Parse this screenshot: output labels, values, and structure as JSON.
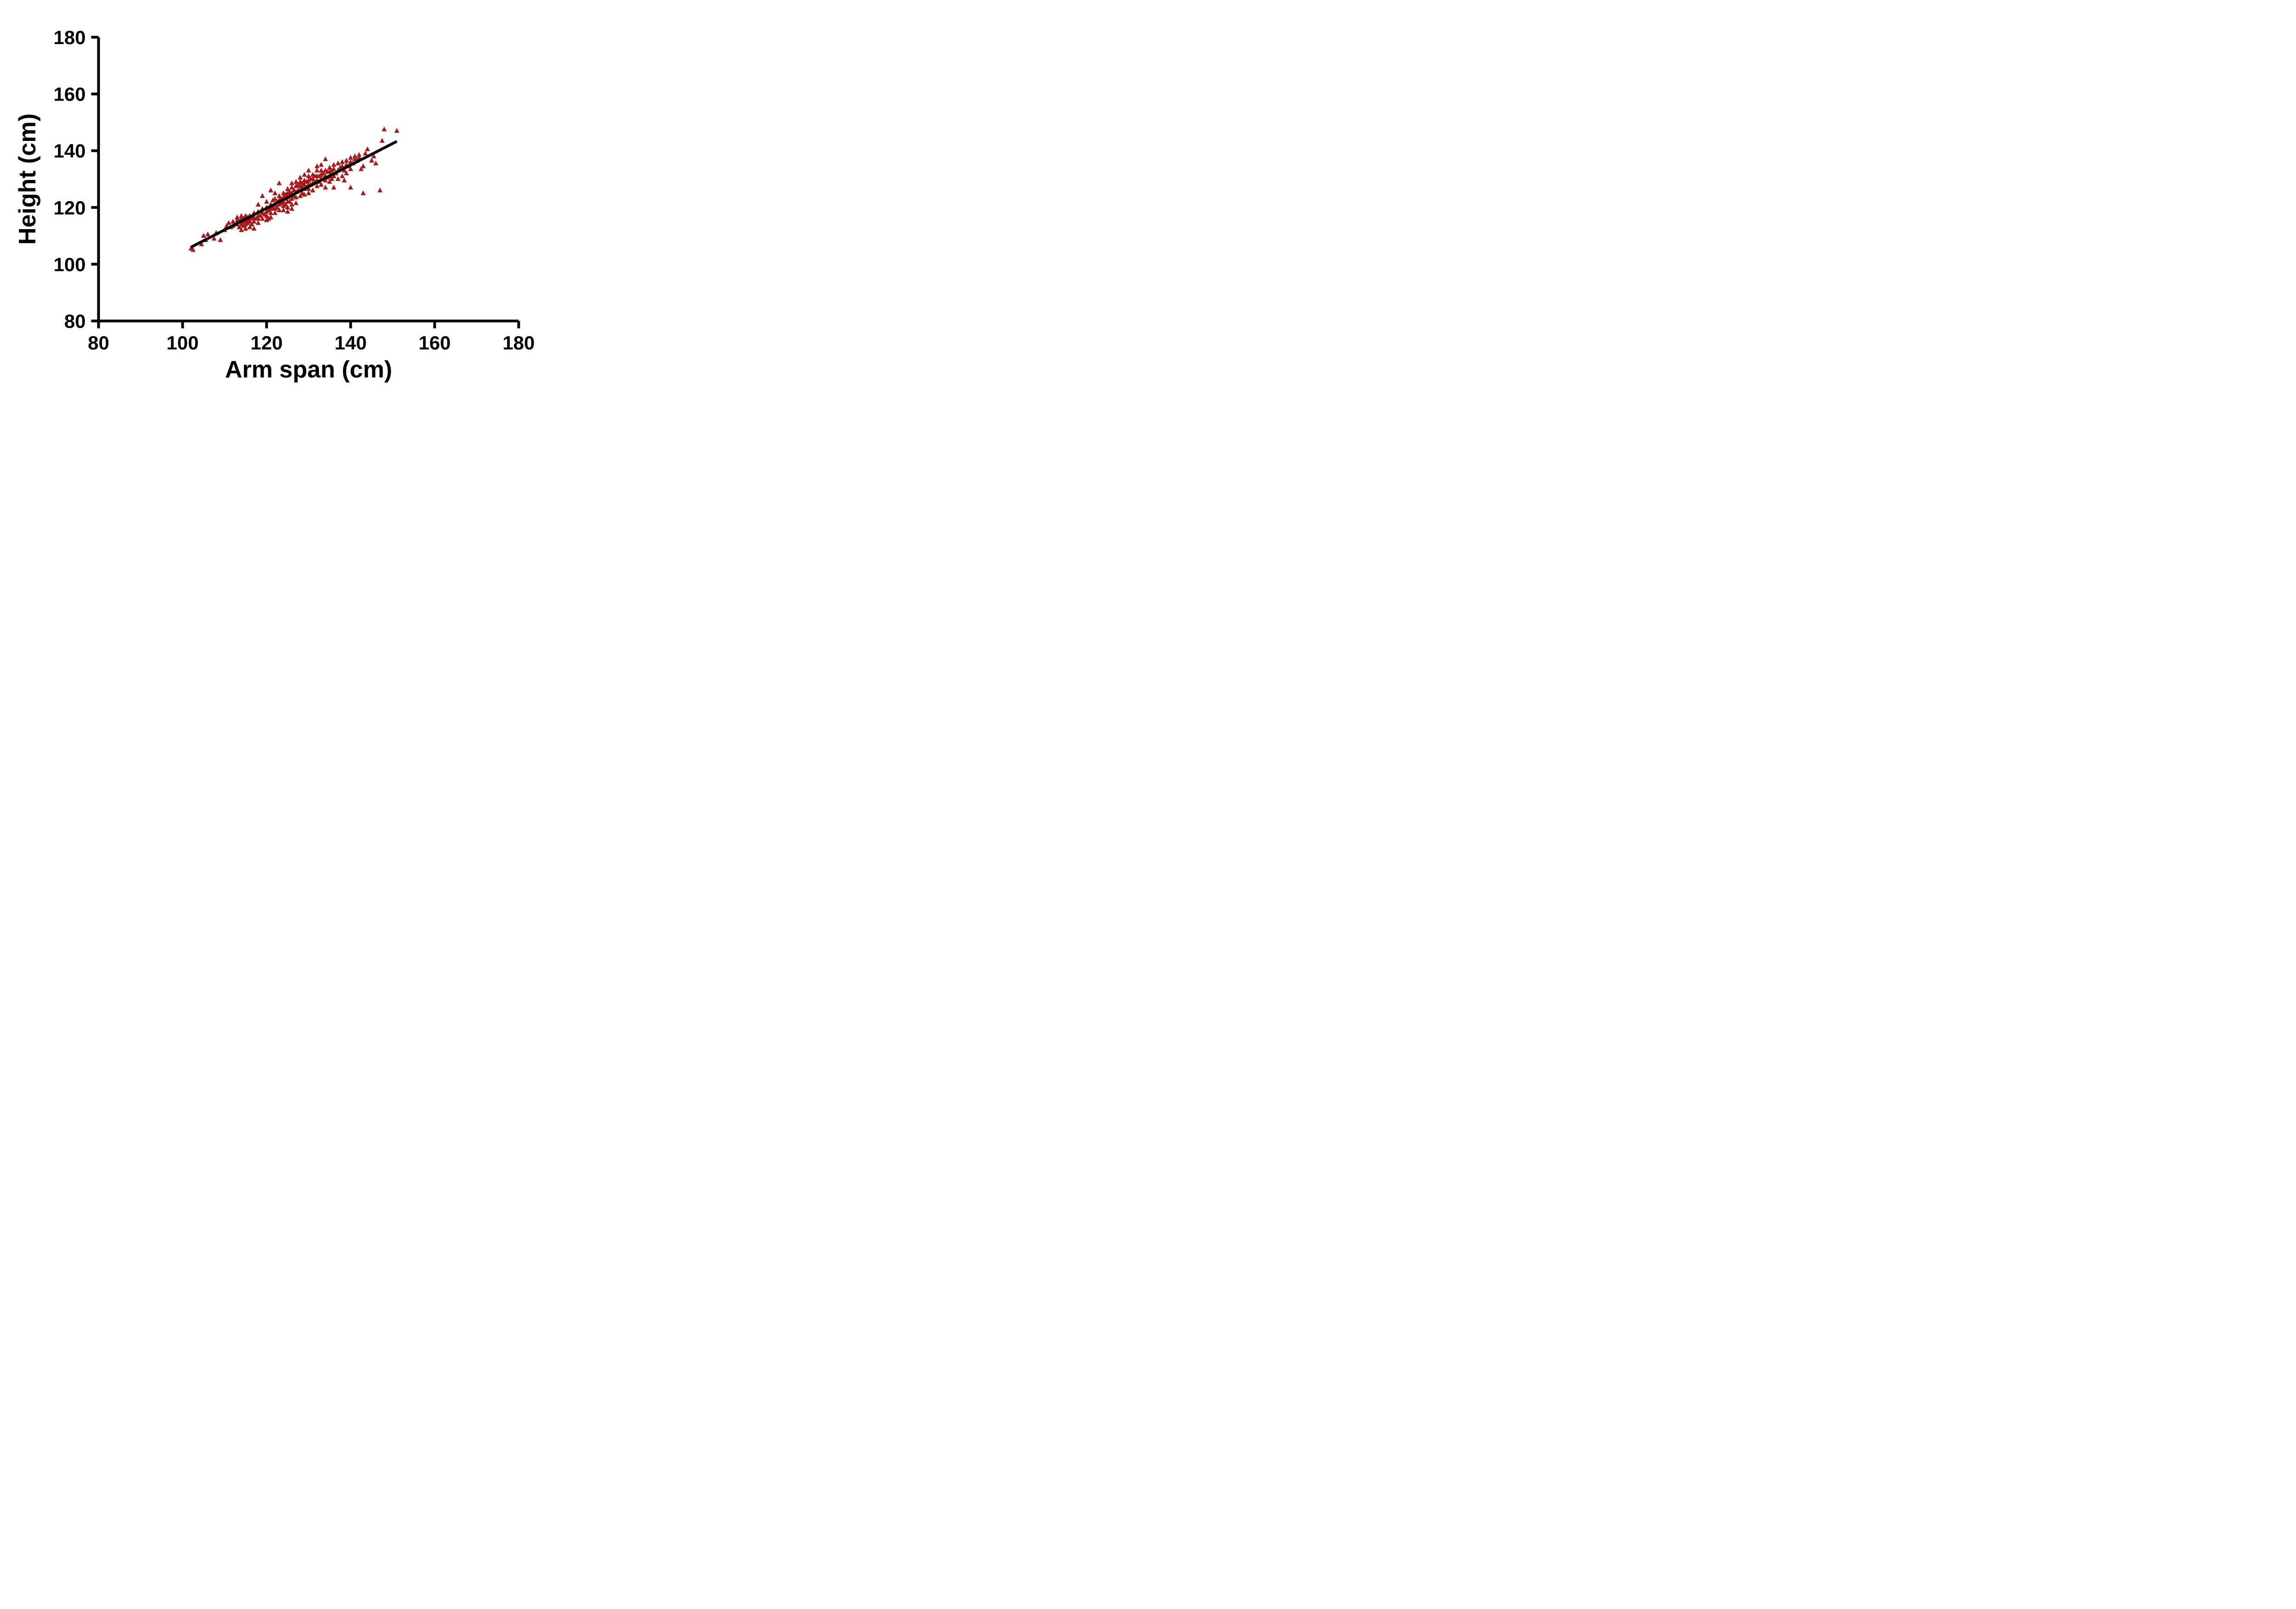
{
  "chart_data": {
    "type": "scatter",
    "title": "",
    "xlabel": "Arm span (cm)",
    "ylabel": "Height (cm)",
    "xlim": [
      80,
      180
    ],
    "ylim": [
      80,
      180
    ],
    "xticks": [
      80,
      100,
      120,
      140,
      160,
      180
    ],
    "yticks": [
      80,
      100,
      120,
      140,
      160,
      180
    ],
    "grid": false,
    "legend": null,
    "marker": {
      "shape": "triangle-up",
      "color": "#a81917",
      "size": 11
    },
    "regression_line": {
      "color": "#000000",
      "x1": 102,
      "y1": 106,
      "x2": 151,
      "y2": 143.3
    },
    "points": [
      [
        102,
        105.5
      ],
      [
        102.5,
        105
      ],
      [
        104.5,
        107
      ],
      [
        105,
        110
      ],
      [
        105.5,
        108.5
      ],
      [
        106,
        110.5
      ],
      [
        107.5,
        109
      ],
      [
        108,
        111
      ],
      [
        109,
        108.5
      ],
      [
        110,
        112
      ],
      [
        110.5,
        113.5
      ],
      [
        111,
        114.5
      ],
      [
        111.5,
        113
      ],
      [
        112,
        115
      ],
      [
        112,
        113.5
      ],
      [
        113,
        114
      ],
      [
        113,
        115.5
      ],
      [
        113,
        116.5
      ],
      [
        113.5,
        113
      ],
      [
        113.5,
        115
      ],
      [
        114,
        112
      ],
      [
        114,
        114
      ],
      [
        114,
        115
      ],
      [
        114,
        116
      ],
      [
        114,
        117
      ],
      [
        114.5,
        113.5
      ],
      [
        114.5,
        115
      ],
      [
        114.5,
        116
      ],
      [
        115,
        112.5
      ],
      [
        115,
        114
      ],
      [
        115,
        115
      ],
      [
        115,
        116
      ],
      [
        115,
        117
      ],
      [
        115.5,
        114.5
      ],
      [
        115.5,
        115.5
      ],
      [
        115.5,
        116.5
      ],
      [
        116,
        113
      ],
      [
        116,
        115
      ],
      [
        116,
        116
      ],
      [
        116,
        117
      ],
      [
        116.5,
        114
      ],
      [
        116.5,
        116
      ],
      [
        117,
        112.5
      ],
      [
        117,
        115
      ],
      [
        117,
        116.5
      ],
      [
        117,
        118
      ],
      [
        117.5,
        116
      ],
      [
        118,
        114.5
      ],
      [
        118,
        116
      ],
      [
        118,
        117
      ],
      [
        118,
        118.5
      ],
      [
        118,
        121
      ],
      [
        118.5,
        117
      ],
      [
        119,
        116
      ],
      [
        119,
        118
      ],
      [
        119,
        119.5
      ],
      [
        119,
        124
      ],
      [
        119.5,
        117.5
      ],
      [
        120,
        115.5
      ],
      [
        120,
        117
      ],
      [
        120,
        118.5
      ],
      [
        120,
        120
      ],
      [
        120,
        122
      ],
      [
        120.5,
        116
      ],
      [
        120.5,
        119
      ],
      [
        121,
        116.5
      ],
      [
        121,
        118
      ],
      [
        121,
        119.5
      ],
      [
        121,
        121
      ],
      [
        121,
        126
      ],
      [
        121.5,
        120
      ],
      [
        121.5,
        122.5
      ],
      [
        122,
        118
      ],
      [
        122,
        119.5
      ],
      [
        122,
        121
      ],
      [
        122,
        123
      ],
      [
        122,
        125
      ],
      [
        122.5,
        120
      ],
      [
        122.5,
        122
      ],
      [
        123,
        119
      ],
      [
        123,
        121
      ],
      [
        123,
        122.5
      ],
      [
        123,
        124
      ],
      [
        123,
        128.5
      ],
      [
        123.5,
        121.5
      ],
      [
        123.5,
        123
      ],
      [
        124,
        119
      ],
      [
        124,
        120.5
      ],
      [
        124,
        122
      ],
      [
        124,
        123.5
      ],
      [
        124,
        125
      ],
      [
        124.5,
        121
      ],
      [
        124.5,
        123
      ],
      [
        124.5,
        124.5
      ],
      [
        125,
        118.5
      ],
      [
        125,
        120
      ],
      [
        125,
        122
      ],
      [
        125,
        123.5
      ],
      [
        125,
        125
      ],
      [
        125,
        126.5
      ],
      [
        125.5,
        122
      ],
      [
        125.5,
        124
      ],
      [
        125.5,
        125.5
      ],
      [
        126,
        119.5
      ],
      [
        126,
        121
      ],
      [
        126,
        123
      ],
      [
        126,
        125
      ],
      [
        126,
        127
      ],
      [
        126,
        128.5
      ],
      [
        126.5,
        124
      ],
      [
        126.5,
        126
      ],
      [
        127,
        121.5
      ],
      [
        127,
        123.5
      ],
      [
        127,
        125.5
      ],
      [
        127,
        127.5
      ],
      [
        127,
        129
      ],
      [
        127.5,
        126
      ],
      [
        127.5,
        128
      ],
      [
        128,
        124
      ],
      [
        128,
        126
      ],
      [
        128,
        127.5
      ],
      [
        128,
        129
      ],
      [
        128,
        130.5
      ],
      [
        128.5,
        125
      ],
      [
        128.5,
        127
      ],
      [
        128.5,
        128.5
      ],
      [
        129,
        124.5
      ],
      [
        129,
        126.5
      ],
      [
        129,
        128
      ],
      [
        129,
        129.5
      ],
      [
        129,
        131.5
      ],
      [
        129.5,
        127
      ],
      [
        129.5,
        129
      ],
      [
        130,
        125
      ],
      [
        130,
        126.5
      ],
      [
        130,
        128
      ],
      [
        130,
        129.5
      ],
      [
        130,
        131
      ],
      [
        130,
        133
      ],
      [
        130.5,
        128
      ],
      [
        130.5,
        130
      ],
      [
        131,
        126
      ],
      [
        131,
        128.5
      ],
      [
        131,
        130
      ],
      [
        131,
        131.5
      ],
      [
        131.5,
        129
      ],
      [
        131.5,
        131
      ],
      [
        132,
        127.5
      ],
      [
        132,
        129.5
      ],
      [
        132,
        131
      ],
      [
        132,
        133
      ],
      [
        132,
        134.5
      ],
      [
        132.5,
        129
      ],
      [
        132.5,
        131
      ],
      [
        133,
        128
      ],
      [
        133,
        130
      ],
      [
        133,
        131.5
      ],
      [
        133,
        133
      ],
      [
        133,
        135
      ],
      [
        133.5,
        130
      ],
      [
        133.5,
        132
      ],
      [
        134,
        127
      ],
      [
        134,
        129.5
      ],
      [
        134,
        131
      ],
      [
        134,
        133
      ],
      [
        134,
        137
      ],
      [
        134.5,
        130.5
      ],
      [
        134.5,
        132.5
      ],
      [
        135,
        129
      ],
      [
        135,
        131
      ],
      [
        135,
        132.5
      ],
      [
        135,
        134
      ],
      [
        135.5,
        130
      ],
      [
        135.5,
        133
      ],
      [
        136,
        127
      ],
      [
        136,
        131
      ],
      [
        136,
        133.5
      ],
      [
        136,
        135
      ],
      [
        136.5,
        132
      ],
      [
        137,
        130
      ],
      [
        137,
        133
      ],
      [
        137,
        135.5
      ],
      [
        137.5,
        134
      ],
      [
        138,
        131
      ],
      [
        138,
        134.5
      ],
      [
        138,
        136
      ],
      [
        138.5,
        129.5
      ],
      [
        138.5,
        133
      ],
      [
        139,
        132
      ],
      [
        139,
        135
      ],
      [
        139,
        136.5
      ],
      [
        139.5,
        134.5
      ],
      [
        140,
        127
      ],
      [
        140,
        133.5
      ],
      [
        140,
        136
      ],
      [
        140,
        137.5
      ],
      [
        140.5,
        135.5
      ],
      [
        141,
        137
      ],
      [
        141,
        138
      ],
      [
        141.5,
        136.5
      ],
      [
        142,
        137.5
      ],
      [
        142,
        138.5
      ],
      [
        142.5,
        133.5
      ],
      [
        143,
        125
      ],
      [
        143,
        134.5
      ],
      [
        143.5,
        139
      ],
      [
        144,
        140.5
      ],
      [
        145,
        136.5
      ],
      [
        145.5,
        138
      ],
      [
        146,
        135.5
      ],
      [
        147,
        126
      ],
      [
        147.5,
        143.5
      ],
      [
        148,
        147.5
      ],
      [
        151,
        147
      ]
    ]
  }
}
